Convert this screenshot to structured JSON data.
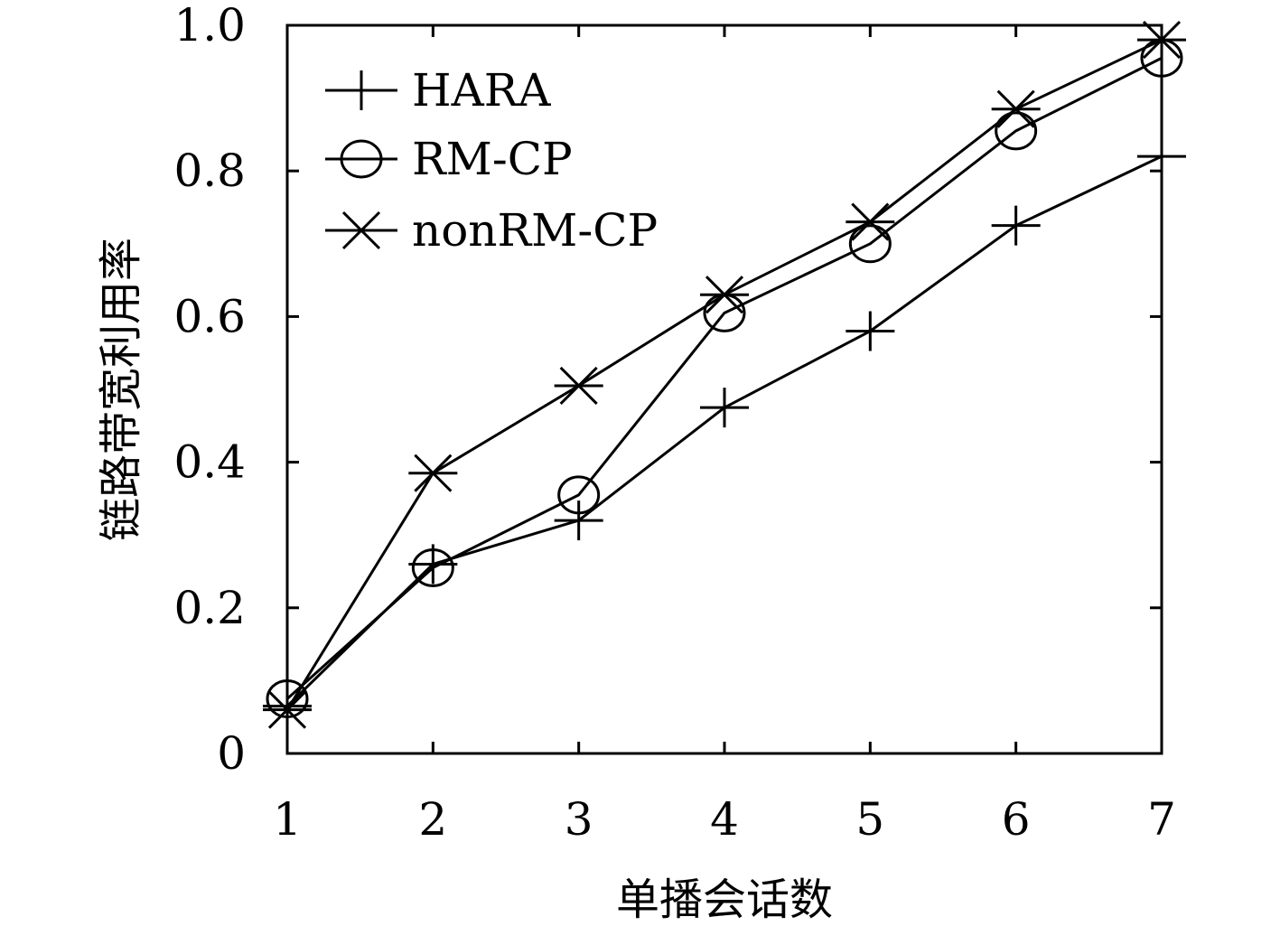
{
  "chart_data": {
    "type": "line",
    "title": "",
    "xlabel": "单播会话数",
    "ylabel": "链路带宽利用率",
    "x": [
      1,
      2,
      3,
      4,
      5,
      6,
      7
    ],
    "xlim": [
      1,
      7
    ],
    "ylim": [
      0,
      1.0
    ],
    "x_tick_labels": [
      "1",
      "2",
      "3",
      "4",
      "5",
      "6",
      "7"
    ],
    "y_tick_labels": [
      "0",
      "0.2",
      "0.4",
      "0.6",
      "0.8",
      "1.0"
    ],
    "grid": false,
    "legend_position": "top-left",
    "line_color": "#000000",
    "series": [
      {
        "name": "HARA",
        "marker": "plus",
        "values": [
          0.065,
          0.26,
          0.32,
          0.475,
          0.58,
          0.725,
          0.82
        ]
      },
      {
        "name": "RM-CP",
        "marker": "circle",
        "values": [
          0.075,
          0.255,
          0.355,
          0.605,
          0.7,
          0.855,
          0.955
        ]
      },
      {
        "name": "nonRM-CP",
        "marker": "asterisk",
        "values": [
          0.06,
          0.385,
          0.505,
          0.63,
          0.73,
          0.885,
          0.98
        ]
      }
    ]
  }
}
